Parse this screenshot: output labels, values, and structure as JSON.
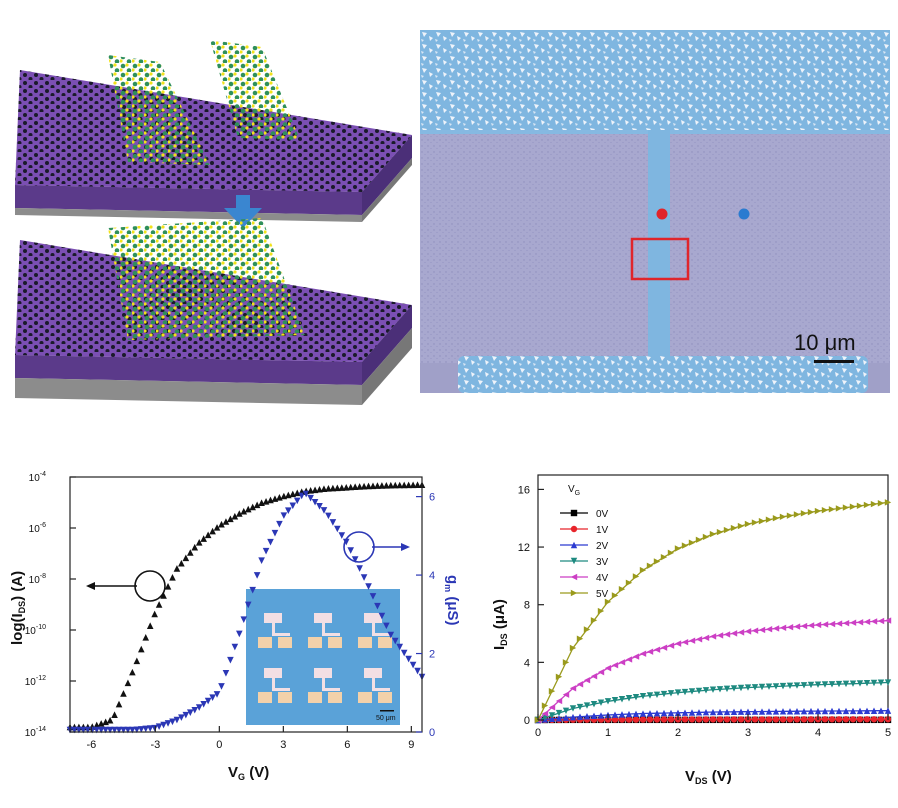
{
  "colors": {
    "substrate_top": "#7b4fb3",
    "substrate_side": "#5b3a8a",
    "substrate_base": "#8c8c8c",
    "atom_dark": "#1a1a2a",
    "atom_green": "#2f8f5a",
    "atom_yellow": "#f2e21a",
    "arrow_blue": "#3a86d0",
    "micro_bg": "#a8a8cf",
    "micro_channel": "#7fb6e0",
    "marker_red": "#e0252b",
    "marker_blue": "#2a7bd0",
    "series_black": "#111111",
    "series_blue": "#2b37b5",
    "s0": "#000000",
    "s1": "#e8242b",
    "s2": "#2c3bd1",
    "s3": "#1e8a80",
    "s4": "#cc3fc4",
    "s5": "#9a9a1c"
  },
  "micrograph": {
    "scale_bar_label": "10  μm"
  },
  "transfer_plot": {
    "left_axis_label_main": "log(I",
    "left_axis_label_sub": "DS",
    "left_axis_label_end": ") (A)",
    "right_axis_label_main": "g",
    "right_axis_label_sub": "m",
    "right_axis_label_end": " (μS)",
    "x_axis_label_main": "V",
    "x_axis_label_sub": "G",
    "x_axis_label_end": " (V)",
    "x_ticks": [
      "-6",
      "-3",
      "0",
      "3",
      "6",
      "9"
    ],
    "left_ticks": [
      {
        "base": "10",
        "exp": "-14"
      },
      {
        "base": "10",
        "exp": "-12"
      },
      {
        "base": "10",
        "exp": "-10"
      },
      {
        "base": "10",
        "exp": "-8"
      },
      {
        "base": "10",
        "exp": "-6"
      },
      {
        "base": "10",
        "exp": "-4"
      }
    ],
    "right_ticks": [
      "0",
      "2",
      "4",
      "6"
    ],
    "inset_scale_label": "50 μm"
  },
  "output_plot": {
    "legend_title_main": "V",
    "legend_title_sub": "G",
    "legend_labels": [
      "0V",
      "1V",
      "2V",
      "3V",
      "4V",
      "5V"
    ],
    "y_axis_label_main": "I",
    "y_axis_label_sub": "DS",
    "y_axis_label_end": " (μA)",
    "x_axis_label_main": "V",
    "x_axis_label_sub": "DS",
    "x_axis_label_end": " (V)",
    "x_ticks": [
      "0",
      "1",
      "2",
      "3",
      "4",
      "5"
    ],
    "y_ticks": [
      "0",
      "4",
      "8",
      "12",
      "16"
    ]
  },
  "chart_data": [
    {
      "type": "line",
      "x": [
        -7,
        -6,
        -5,
        -4,
        -3,
        -2,
        -1,
        0,
        1,
        2,
        3,
        4,
        5,
        6,
        7,
        8,
        9.5
      ],
      "xlim": [
        -7,
        9.5
      ],
      "ylim_log10": [
        -14,
        -4
      ],
      "ylim_right": [
        0,
        6.5
      ],
      "series": [
        {
          "axis": "left",
          "log10_values": [
            -13.8,
            -13.8,
            -13.5,
            -11.5,
            -9.3,
            -7.6,
            -6.6,
            -5.9,
            -5.4,
            -5.0,
            -4.75,
            -4.55,
            -4.45,
            -4.4,
            -4.35,
            -4.32,
            -4.3
          ]
        },
        {
          "axis": "right",
          "values": [
            0.05,
            0.05,
            0.05,
            0.05,
            0.1,
            0.3,
            0.6,
            1.0,
            2.6,
            4.4,
            5.5,
            6.1,
            5.6,
            4.8,
            3.7,
            2.5,
            1.4
          ]
        }
      ]
    },
    {
      "type": "line",
      "x": [
        0,
        0.5,
        1,
        1.5,
        2,
        2.5,
        3,
        3.5,
        4,
        4.5,
        5
      ],
      "xlim": [
        0,
        5
      ],
      "ylim": [
        0,
        17
      ],
      "series": [
        {
          "name": "0V",
          "values": [
            0,
            0.01,
            0.01,
            0.01,
            0.01,
            0.01,
            0.01,
            0.01,
            0.01,
            0.01,
            0.01
          ]
        },
        {
          "name": "1V",
          "values": [
            0,
            0.02,
            0.03,
            0.03,
            0.04,
            0.04,
            0.04,
            0.04,
            0.05,
            0.05,
            0.05
          ]
        },
        {
          "name": "2V",
          "values": [
            0,
            0.2,
            0.35,
            0.45,
            0.5,
            0.55,
            0.58,
            0.6,
            0.62,
            0.63,
            0.65
          ]
        },
        {
          "name": "3V",
          "values": [
            0,
            0.8,
            1.3,
            1.65,
            1.9,
            2.1,
            2.25,
            2.35,
            2.45,
            2.52,
            2.6
          ]
        },
        {
          "name": "4V",
          "values": [
            0,
            2.2,
            3.6,
            4.6,
            5.3,
            5.8,
            6.15,
            6.4,
            6.6,
            6.75,
            6.9
          ]
        },
        {
          "name": "5V",
          "values": [
            0,
            5.0,
            8.2,
            10.4,
            11.9,
            12.9,
            13.6,
            14.1,
            14.5,
            14.8,
            15.1
          ]
        }
      ]
    }
  ]
}
